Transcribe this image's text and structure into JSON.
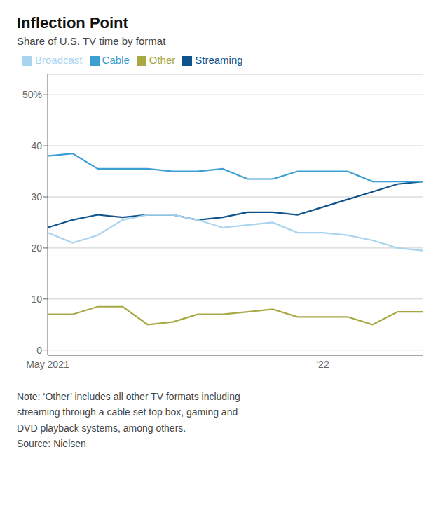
{
  "chart_data": {
    "type": "line",
    "title": "Inflection Point",
    "subtitle": "Share of U.S. TV time by format",
    "annotations": [
      "Note: ‘Other’ includes all other TV formats including\nstreaming through a cable set top box, gaming and\nDVD playback systems, among others.\nSource: Nielsen"
    ],
    "categories": [
      "May 2021",
      null,
      null,
      null,
      null,
      null,
      null,
      null,
      null,
      null,
      null,
      "’22",
      null,
      null,
      null,
      null
    ],
    "series": [
      {
        "name": "Streaming",
        "color": "#10538c",
        "values": [
          24.0,
          25.5,
          26.5,
          26.0,
          26.5,
          26.5,
          25.5,
          26.0,
          27.0,
          27.0,
          26.5,
          28.0,
          29.5,
          31.0,
          32.5,
          33.0
        ]
      },
      {
        "name": "Cable",
        "color": "#3b9fd4",
        "values": [
          38.0,
          38.5,
          35.5,
          35.5,
          35.5,
          35.0,
          35.0,
          35.5,
          33.5,
          33.5,
          35.0,
          35.0,
          35.0,
          33.0,
          33.0,
          33.0
        ]
      },
      {
        "name": "Broadcast",
        "color": "#a8d4ef",
        "values": [
          23.0,
          21.0,
          22.5,
          25.5,
          26.5,
          26.5,
          25.5,
          24.0,
          24.5,
          25.0,
          23.0,
          23.0,
          22.5,
          21.5,
          20.0,
          19.5
        ]
      },
      {
        "name": "Other",
        "color": "#a8a845",
        "values": [
          7.0,
          7.0,
          8.5,
          8.5,
          5.0,
          5.5,
          7.0,
          7.0,
          7.5,
          8.0,
          6.5,
          6.5,
          6.5,
          5.0,
          7.5,
          7.5
        ]
      }
    ],
    "ylim": [
      -1,
      54
    ],
    "yticks": [
      0,
      10,
      20,
      30,
      40,
      {
        "value": 50,
        "label": "50%"
      }
    ],
    "grid": true,
    "legend": "top"
  }
}
